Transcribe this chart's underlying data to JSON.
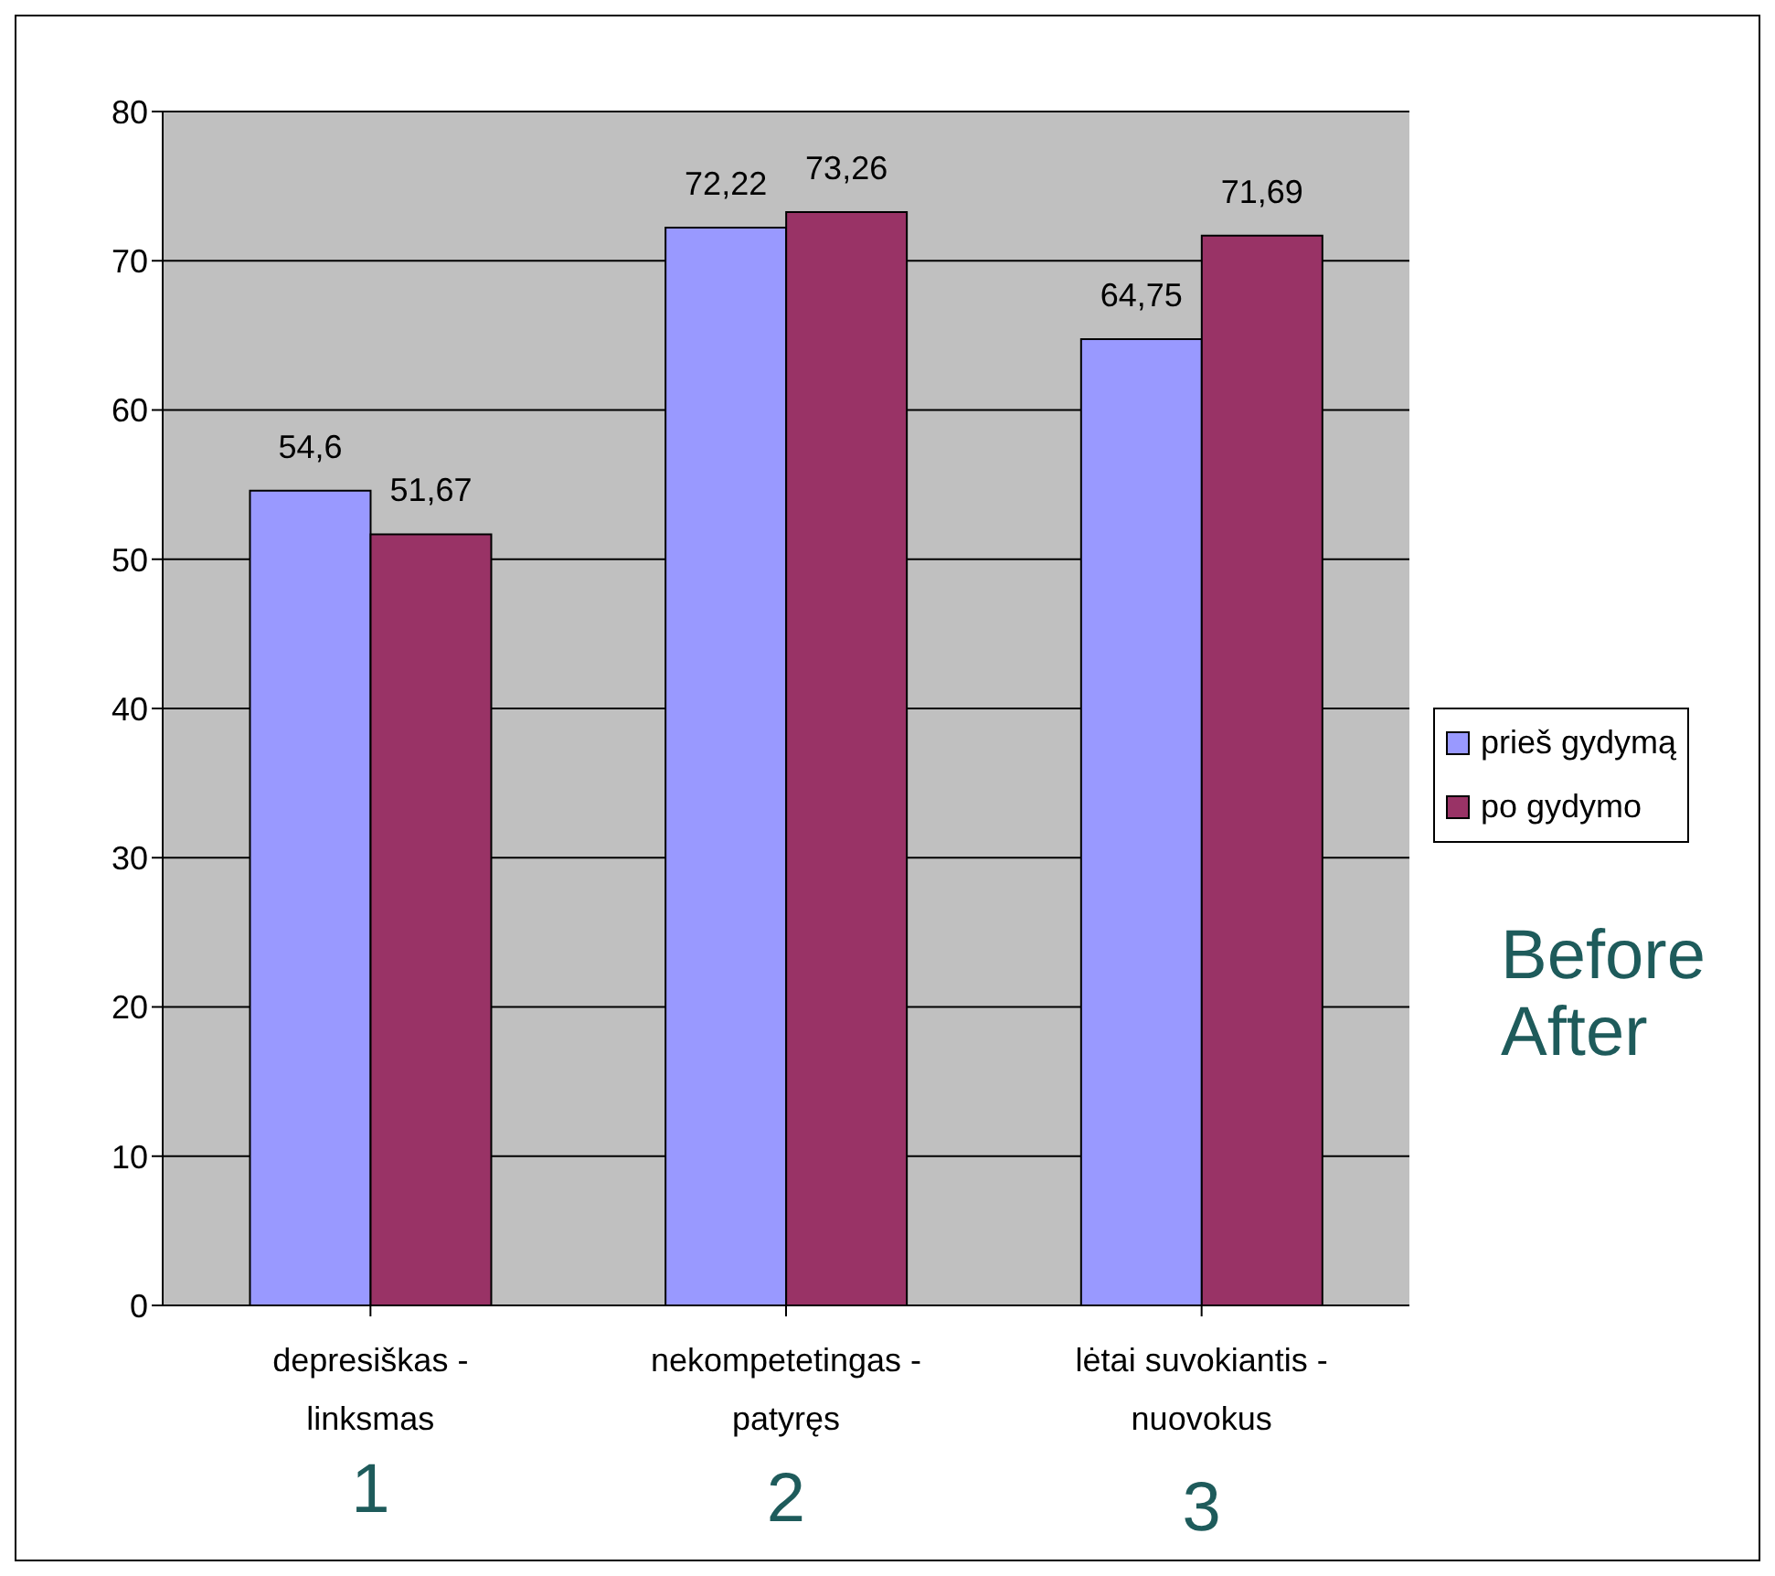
{
  "chart_data": {
    "type": "bar",
    "categories": [
      "depresiškas - linksmas",
      "nekompetetingas - patyręs",
      "lėtai suvokiantis - nuovokus"
    ],
    "series": [
      {
        "name": "prieš gydymą",
        "color": "#9999ff",
        "values": [
          54.6,
          72.22,
          64.75
        ],
        "value_labels": [
          "54,6",
          "72,22",
          "64,75"
        ]
      },
      {
        "name": "po gydymo",
        "color": "#993366",
        "values": [
          51.67,
          73.26,
          71.69
        ],
        "value_labels": [
          "51,67",
          "73,26",
          "71,69"
        ]
      }
    ],
    "ylim": [
      0,
      80
    ],
    "yticks": [
      0,
      10,
      20,
      30,
      40,
      50,
      60,
      70,
      80
    ],
    "grid": "y",
    "legend": "right",
    "annotations": [
      "Before",
      "After",
      "1",
      "2",
      "3"
    ]
  }
}
